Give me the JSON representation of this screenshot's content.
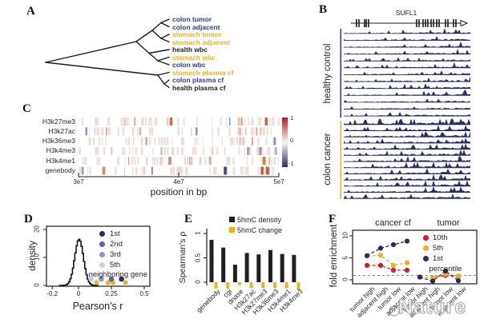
{
  "watermark": {
    "text": "Nature"
  },
  "panels": {
    "a": "A",
    "b": "B",
    "c": "C",
    "d": "D",
    "e": "E",
    "f": "F"
  },
  "colors": {
    "blue_label": "#2e3a97",
    "yellow_label": "#f0b01e",
    "track_navy": "#1e2260",
    "red": "#d7182a",
    "navy_point": "#262a6b",
    "bar_black": "#231f20"
  },
  "panel_a": {
    "leaves": [
      {
        "text": "colon tumor",
        "color": "#2e3a97"
      },
      {
        "text": "colon adjacent",
        "color": "#2e3a97"
      },
      {
        "text": "stomach tumor",
        "color": "#f0b01e"
      },
      {
        "text": "stomach adjacent",
        "color": "#f0b01e"
      },
      {
        "text": "health wbc",
        "color": "#231f20"
      },
      {
        "text": "stomach wbc",
        "color": "#f0b01e"
      },
      {
        "text": "colon wbc",
        "color": "#2e3a97"
      },
      {
        "text": "stomach plasma cf",
        "color": "#f0b01e"
      },
      {
        "text": "colon plasma cf",
        "color": "#2e3a97"
      },
      {
        "text": "health plasma cf",
        "color": "#231f20"
      }
    ]
  },
  "panel_b": {
    "gene": "SUFL1",
    "groups": [
      {
        "name": "healthy control",
        "color": "#2e3a97",
        "tracks": 13
      },
      {
        "name": "colon cancer",
        "color": "#f0b01e",
        "tracks": 13
      }
    ],
    "exons": [
      0.05,
      0.073,
      0.124,
      0.139,
      0.16,
      0.598,
      0.62,
      0.657,
      0.679,
      0.7,
      0.73,
      0.752,
      0.781,
      0.803,
      0.861,
      0.883,
      0.934,
      0.956
    ]
  },
  "chart_data": [
    {
      "type": "heatmap",
      "panel": "C",
      "rows": [
        "H3k27me3",
        "H3k27ac",
        "H3k36me3",
        "H3k4me3",
        "H3k4me1",
        "genebody"
      ],
      "xlabel": "position in bp",
      "x_ticks": [
        "3e7",
        "4e7",
        "5e7"
      ],
      "x_range": [
        30000000,
        50000000
      ],
      "colorbar": {
        "labels": [
          "1",
          "0",
          "-1"
        ],
        "top_color": "#b2182b",
        "mid_color": "#f8f6f4",
        "bottom_color": "#2d2b66"
      },
      "highlights": [
        {
          "row": 0,
          "pos": 0.455,
          "color": "#c96a4f"
        },
        {
          "row": 0,
          "pos": 0.93,
          "color": "#c96a4f"
        },
        {
          "row": 4,
          "pos": 0.45,
          "color": "#d08a6e"
        },
        {
          "row": 4,
          "pos": 0.92,
          "color": "#cc7a5a"
        },
        {
          "row": 5,
          "pos": 0.12,
          "color": "#d08a6e"
        },
        {
          "row": 5,
          "pos": 0.725,
          "color": "#3c4184"
        },
        {
          "row": 5,
          "pos": 0.91,
          "color": "#c05c41"
        },
        {
          "row": 5,
          "pos": 0.935,
          "color": "#c05c41"
        }
      ]
    },
    {
      "type": "line",
      "panel": "D",
      "xlabel": "Pearson's  r",
      "ylabel": "density",
      "x_ticks": [
        -0.2,
        0,
        0.25,
        0.5
      ],
      "x_tick_labels": [
        "-0.2",
        "0",
        "0.25",
        "0.5"
      ],
      "y_ticks": [
        0,
        10,
        20
      ],
      "y_tick_labels": [
        "0",
        "10",
        "20"
      ],
      "xlim": [
        -0.28,
        0.53
      ],
      "ylim": [
        0,
        20.5
      ],
      "density_curve": {
        "center": 0,
        "peak": 16.5,
        "sigma": 0.047
      },
      "legend": [
        {
          "label": "1st",
          "color": "#262a6b"
        },
        {
          "label": "2nd",
          "color": "#5c609f"
        },
        {
          "label": "3rd",
          "color": "#9093c4"
        },
        {
          "label": "5th",
          "color": "#c9cae6"
        }
      ],
      "legend_note": "neighboring gene",
      "scatter_top": [
        {
          "x": 0.095,
          "color": "#c9cae6",
          "rank": "5th"
        },
        {
          "x": 0.173,
          "color": "#9093c4",
          "rank": "3rd"
        },
        {
          "x": 0.25,
          "color": "#5c609f",
          "rank": "2nd"
        },
        {
          "x": 0.327,
          "color": "#262a6b",
          "rank": "1st"
        }
      ],
      "scatter_bottom": {
        "color": "#f0b01e",
        "x": [
          0.137,
          0.226,
          0.262,
          0.357
        ]
      }
    },
    {
      "type": "bar",
      "panel": "E",
      "ylabel": "Spearman's  ρ",
      "y_ticks": [
        0,
        0.5,
        1
      ],
      "y_tick_labels": [
        "0",
        "0.5",
        "1"
      ],
      "ylim": [
        -0.2,
        1.05
      ],
      "categories": [
        "genebody",
        "cgi",
        "dnase",
        "H3k27ac",
        "H3k27me3",
        "H3k36me3",
        "H3k4me1",
        "H3k4me3"
      ],
      "series": [
        {
          "name": "5hmC density",
          "color": "#231f20",
          "values": [
            0.87,
            0.71,
            0.36,
            0.6,
            0.57,
            0.66,
            0.58,
            0.56
          ]
        },
        {
          "name": "5hmC change",
          "color": "#f0b01e",
          "values": [
            -0.13,
            -0.13,
            -0.06,
            -0.12,
            -0.12,
            -0.12,
            -0.12,
            -0.16
          ]
        }
      ]
    },
    {
      "type": "line",
      "panel": "F",
      "ylabel": "fold enrichment",
      "group_titles": [
        "cancer cf",
        "tumor"
      ],
      "categories": [
        "tumor high",
        "adjacent high",
        "tumor low",
        "adjacent low",
        "tumor high",
        "adjacent high",
        "tumor low",
        "adjacent low"
      ],
      "y_ticks": [
        0,
        5,
        10
      ],
      "y_tick_labels": [
        "0",
        "5",
        "10"
      ],
      "ylim": [
        -0.6,
        11
      ],
      "reference_line": 1,
      "legend_note": "percentile",
      "series": [
        {
          "name": "10th",
          "color": "#d7182a",
          "values": [
            3.3,
            3.3,
            2.2,
            2.2,
            0.7,
            0.5,
            1.0,
            0.8
          ]
        },
        {
          "name": "5th",
          "color": "#f0b01e",
          "values": [
            5.4,
            5.6,
            3.3,
            3.9,
            0.7,
            0.5,
            1.3,
            0.9
          ]
        },
        {
          "name": "1st",
          "color": "#262a6b",
          "values": [
            5.5,
            7.2,
            8.0,
            8.8,
            0.6,
            -0.3,
            2.0,
            -0.2
          ]
        }
      ]
    }
  ]
}
